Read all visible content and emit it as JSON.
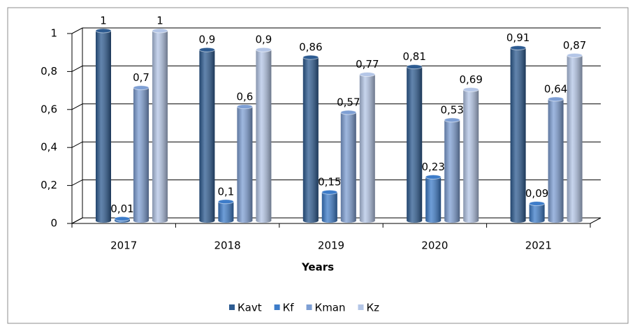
{
  "chart_data": {
    "type": "bar3d",
    "x_label": "Years",
    "categories": [
      "2017",
      "2018",
      "2019",
      "2020",
      "2021"
    ],
    "series": [
      {
        "name": "Кavt",
        "color": "#2d5b91",
        "values": [
          1,
          0.9,
          0.86,
          0.81,
          0.91
        ],
        "value_labels": [
          "1",
          "0,9",
          "0,86",
          "0,81",
          "0,91"
        ]
      },
      {
        "name": "Кf",
        "color": "#3d7cc9",
        "values": [
          0.01,
          0.1,
          0.15,
          0.23,
          0.09
        ],
        "value_labels": [
          "0,01",
          "0,1",
          "0,15",
          "0,23",
          "0,09"
        ]
      },
      {
        "name": "Кman",
        "color": "#7e9fd4",
        "values": [
          0.7,
          0.6,
          0.57,
          0.53,
          0.64
        ],
        "value_labels": [
          "0,7",
          "0,6",
          "0,57",
          "0,53",
          "0,64"
        ]
      },
      {
        "name": "Кz",
        "color": "#b4c6e7",
        "values": [
          1,
          0.9,
          0.77,
          0.69,
          0.87
        ],
        "value_labels": [
          "1",
          "0,9",
          "0,77",
          "0,69",
          "0,87"
        ]
      }
    ],
    "ylim": [
      0,
      1
    ],
    "yticks": [
      0,
      {
        "value": 0.2,
        "label": "0,2"
      },
      {
        "value": 0.4,
        "label": "0,4"
      },
      {
        "value": 0.6,
        "label": "0,6"
      },
      {
        "value": 0.8,
        "label": "0,8"
      },
      1
    ],
    "grid": true,
    "legend": "bottom"
  }
}
